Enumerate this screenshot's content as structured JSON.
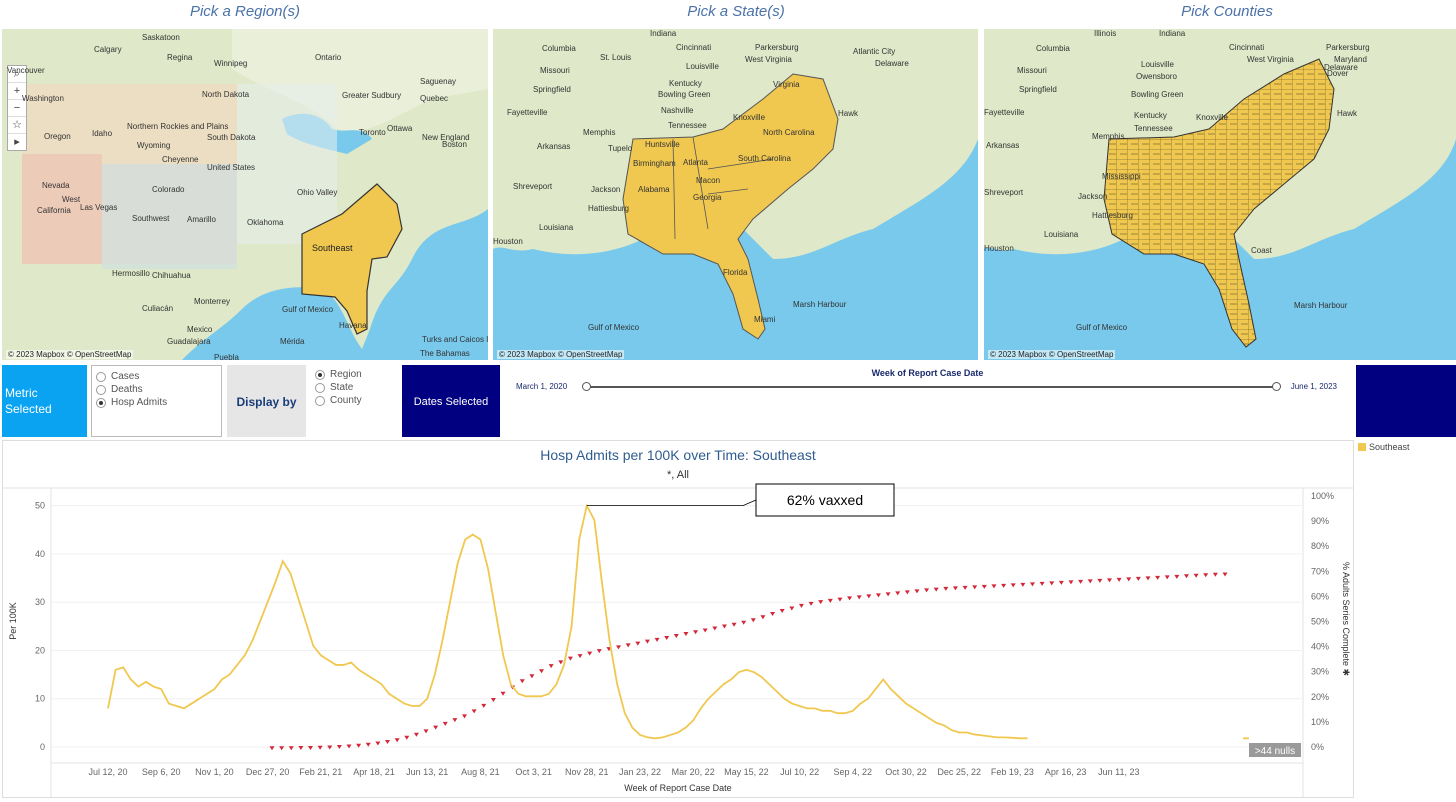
{
  "panels": {
    "region_title": "Pick a Region(s)",
    "state_title": "Pick a State(s)",
    "county_title": "Pick Counties",
    "attribution": "© 2023 Mapbox © OpenStreetMap"
  },
  "map_region": {
    "selected_label": "Southeast",
    "labels": [
      "Saskatoon",
      "Calgary",
      "Regina",
      "Winnipeg",
      "Ontario",
      "Vancouver",
      "Washington",
      "North Dakota",
      "Northern Rockies and Plains",
      "Oregon",
      "Idaho",
      "Wyoming",
      "South Dakota",
      "Cheyenne",
      "Quebec",
      "Greater Sudbury",
      "Saguenay",
      "Toronto",
      "Ottawa",
      "Boston",
      "New England",
      "Ohio Valley",
      "Nevada",
      "West",
      "California",
      "Las Vegas",
      "Colorado",
      "United States",
      "Southwest",
      "Amarillo",
      "Oklahoma",
      "Mexico",
      "Hermosillo",
      "Chihuahua",
      "Culiacán",
      "Monterrey",
      "Guadalajara",
      "Mérida",
      "Havana",
      "Gulf of Mexico",
      "Puebla",
      "Turks and Caicos Islands",
      "The Bahamas"
    ]
  },
  "map_state": {
    "labels": [
      "Indiana",
      "Cincinnati",
      "Parkersburg",
      "Atlantic City",
      "Columbia",
      "St. Louis",
      "Louisville",
      "West Virginia",
      "Delaware",
      "Missouri",
      "Kentucky",
      "Virginia",
      "Springfield",
      "Bowling Green",
      "Nashville",
      "Tennessee",
      "Knoxville",
      "North Carolina",
      "Fayetteville",
      "Memphis",
      "Huntsville",
      "Arkansas",
      "Tupelo",
      "Birmingham",
      "Atlanta",
      "South Carolina",
      "Alabama",
      "Georgia",
      "Shreveport",
      "Jackson",
      "Macon",
      "Hattiesburg",
      "Louisiana",
      "Florida",
      "Marsh Harbour",
      "Gulf of Mexico",
      "Miami",
      "Houston",
      "Hawk"
    ]
  },
  "map_county": {
    "labels": [
      "Illinois",
      "Indiana",
      "Cincinnati",
      "Parkersburg",
      "Maryland",
      "Dover",
      "Columbia",
      "Louisville",
      "West Virginia",
      "Delaware",
      "Missouri",
      "Owensboro",
      "Springfield",
      "Bowling Green",
      "Kentucky",
      "Knoxville",
      "Tennessee",
      "Memphis",
      "Fayetteville",
      "Arkansas",
      "Shreveport",
      "Mississippi",
      "Jackson",
      "Hattiesburg",
      "Louisiana",
      "Marsh Harbour",
      "Gulf of Mexico",
      "Houston",
      "Coast",
      "Hawk"
    ]
  },
  "controls": {
    "metric_label": "Metric\nSelected",
    "metric_options": [
      "Cases",
      "Deaths",
      "Hosp Admits"
    ],
    "metric_selected": "Hosp Admits",
    "display_by_label": "Display by",
    "display_options": [
      "Region",
      "State",
      "County"
    ],
    "display_selected": "Region",
    "dates_label": "Dates Selected",
    "date_slider_title": "Week of Report Case Date",
    "date_start": "March 1, 2020",
    "date_end": "June 1, 2023",
    "date_range_fraction": [
      0,
      1
    ]
  },
  "legend": {
    "series_name": "Southeast",
    "color": "#f0c850"
  },
  "chart_data": {
    "type": "line",
    "title": "Hosp Admits per 100K over Time: Southeast",
    "subtitle": "*,  All",
    "xlabel": "Week of Report Case Date",
    "ylabel": "Per 100K",
    "y2label": "% Adults Series Complete ✱",
    "ylim": [
      0,
      52
    ],
    "y2lim": [
      0,
      100
    ],
    "yticks": [
      0,
      10,
      20,
      30,
      40,
      50
    ],
    "y2ticks": [
      "0%",
      "10%",
      "20%",
      "30%",
      "40%",
      "50%",
      "60%",
      "70%",
      "80%",
      "90%",
      "100%"
    ],
    "xticks": [
      "Jul 12, 20",
      "Sep 6, 20",
      "Nov 1, 20",
      "Dec 27, 20",
      "Feb 21, 21",
      "Apr 18, 21",
      "Jun 13, 21",
      "Aug 8, 21",
      "Oct 3, 21",
      "Nov 28, 21",
      "Jan 23, 22",
      "Mar 20, 22",
      "May 15, 22",
      "Jul 10, 22",
      "Sep 4, 22",
      "Oct 30, 22",
      "Dec 25, 22",
      "Feb 19, 23",
      "Apr 16, 23",
      "Jun 11, 23"
    ],
    "annotation": "62% vaxxed",
    "nulls_label": ">44 nulls",
    "series": [
      {
        "name": "Southeast",
        "axis": "left",
        "color": "#f0c850",
        "values": [
          8,
          16,
          16.5,
          14,
          12.5,
          13.5,
          12.5,
          12,
          9,
          8.5,
          8,
          9,
          10,
          11,
          12,
          14,
          15,
          17,
          19,
          22,
          26,
          30,
          34,
          38.5,
          36,
          31,
          26,
          21,
          19,
          18,
          17,
          17,
          17.5,
          16,
          15,
          14,
          13,
          11,
          10,
          9,
          8.5,
          8.5,
          10,
          15,
          22,
          30,
          38,
          43,
          44,
          43,
          37,
          28,
          19,
          13,
          11,
          10.5,
          10.5,
          10.5,
          11,
          13,
          17,
          25,
          43,
          50,
          47,
          34,
          22,
          13,
          7,
          4,
          2.5,
          2,
          1.8,
          2,
          2.5,
          3,
          4,
          5.5,
          8,
          10,
          11.5,
          13,
          14,
          15.5,
          16,
          15.5,
          14.5,
          13,
          11.5,
          10,
          9,
          8.5,
          8,
          8,
          7.5,
          7.5,
          7,
          7,
          7.5,
          9,
          10,
          12,
          14,
          12,
          10.5,
          9,
          8,
          7,
          6,
          5,
          4.5,
          3.5,
          3,
          3,
          2.6,
          2.4,
          2.2,
          2,
          2,
          1.9,
          1.8,
          1.8
        ]
      },
      {
        "name": "% Adults Series Complete",
        "axis": "right",
        "color": "#d2283a",
        "values": [
          0.3,
          0.3,
          0.3,
          0.4,
          0.4,
          0.5,
          0.6,
          0.8,
          1,
          1.3,
          1.7,
          2.2,
          2.8,
          3.5,
          4.5,
          5.7,
          7,
          8.5,
          10,
          11.5,
          13,
          15,
          17.2,
          19.5,
          22,
          24.5,
          27,
          29,
          31,
          33,
          34.5,
          36,
          37,
          38,
          39,
          39.8,
          40.5,
          41.3,
          42,
          42.8,
          43.5,
          44.2,
          45,
          45.8,
          46.5,
          47.2,
          48,
          48.8,
          49.5,
          50.3,
          51.3,
          52.5,
          53.8,
          55,
          56,
          57,
          57.8,
          58.5,
          59,
          59.5,
          60,
          60.4,
          60.8,
          61.2,
          61.6,
          62,
          62.4,
          62.8,
          63.2,
          63.5,
          63.8,
          64,
          64.2,
          64.4,
          64.6,
          64.8,
          65,
          65.2,
          65.4,
          65.6,
          65.8,
          66,
          66.2,
          66.4,
          66.6,
          66.8,
          67,
          67.2,
          67.4,
          67.6,
          67.8,
          68,
          68.2,
          68.4,
          68.6,
          68.8,
          69,
          69.2,
          69.4,
          69.5
        ]
      }
    ]
  }
}
